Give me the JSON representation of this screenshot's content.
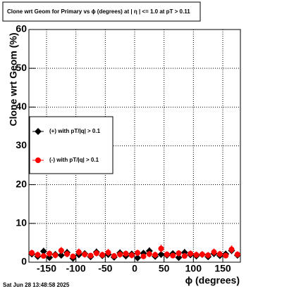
{
  "chart_data": {
    "type": "scatter",
    "title": "Clone wrt Geom for Primary vs ϕ (degrees) at |  η  | <= 1.0 at pT > 0.11",
    "x_label": "ϕ (degrees)",
    "y_label": "Clone wrt Geom (%)",
    "footer": "Sat Jun 28 13:48:58 2025",
    "x": [
      -175,
      -165,
      -155,
      -145,
      -135,
      -125,
      -115,
      -105,
      -95,
      -85,
      -75,
      -65,
      -55,
      -45,
      -35,
      -25,
      -15,
      -5,
      5,
      15,
      25,
      35,
      45,
      55,
      65,
      75,
      85,
      95,
      105,
      115,
      125,
      135,
      145,
      155,
      165,
      175
    ],
    "series": [
      {
        "name": "(+) with pT/|q| > 0.1",
        "color": "#000000",
        "marker": "diamond",
        "values": [
          2.1,
          1.5,
          2.8,
          1.2,
          2.0,
          1.8,
          2.5,
          1.0,
          1.9,
          2.2,
          1.4,
          2.6,
          1.7,
          2.0,
          1.3,
          2.4,
          1.6,
          2.1,
          1.1,
          2.3,
          2.9,
          1.5,
          2.0,
          1.8,
          2.2,
          1.2,
          2.5,
          1.9,
          1.6,
          2.0,
          1.4,
          2.2,
          1.7,
          2.1,
          3.0,
          1.8
        ],
        "errors": [
          0.8,
          0.8,
          0.9,
          0.7,
          0.8,
          0.8,
          0.9,
          0.7,
          0.8,
          0.8,
          0.7,
          0.9,
          0.8,
          0.8,
          0.7,
          0.9,
          0.8,
          0.8,
          0.7,
          0.8,
          0.9,
          0.7,
          0.8,
          0.8,
          0.8,
          0.7,
          0.9,
          0.8,
          0.8,
          0.8,
          0.7,
          0.8,
          0.8,
          0.8,
          0.9,
          0.8
        ]
      },
      {
        "name": "(-) with pT/|q| > 0.1",
        "color": "#ff0000",
        "marker": "circle",
        "values": [
          2.4,
          1.9,
          1.6,
          2.2,
          1.8,
          3.0,
          2.1,
          1.5,
          2.6,
          2.0,
          1.7,
          2.3,
          1.9,
          2.5,
          1.6,
          2.0,
          2.2,
          1.8,
          2.4,
          1.5,
          2.1,
          1.9,
          3.5,
          2.0,
          1.7,
          2.3,
          1.6,
          2.2,
          1.9,
          2.0,
          1.8,
          2.6,
          2.1,
          1.7,
          3.3,
          2.0
        ],
        "errors": [
          0.8,
          0.8,
          0.7,
          0.8,
          0.8,
          0.9,
          0.8,
          0.7,
          0.9,
          0.8,
          0.7,
          0.8,
          0.8,
          0.9,
          0.7,
          0.8,
          0.8,
          0.8,
          0.8,
          0.7,
          0.8,
          0.8,
          1.0,
          0.8,
          0.7,
          0.8,
          0.7,
          0.8,
          0.8,
          0.8,
          0.8,
          0.9,
          0.8,
          0.7,
          1.0,
          0.8
        ]
      }
    ],
    "xlim": [
      -180,
      180
    ],
    "xticks": [
      -150,
      -100,
      -50,
      0,
      50,
      100,
      150
    ],
    "ylim": [
      0,
      60
    ],
    "yticks": [
      0,
      10,
      20,
      30,
      40,
      50,
      60
    ],
    "grid": true
  }
}
